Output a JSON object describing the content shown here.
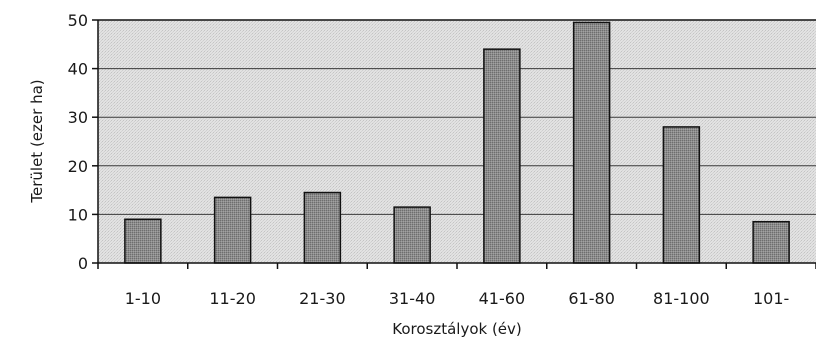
{
  "chart_data": {
    "type": "bar",
    "categories": [
      "1-10",
      "11-20",
      "21-30",
      "31-40",
      "41-60",
      "61-80",
      "81-100",
      "101-"
    ],
    "values": [
      9,
      13.5,
      14.5,
      11.5,
      44,
      49.5,
      28,
      8.5
    ],
    "title": "",
    "xlabel": "Korosztályok (év)",
    "ylabel": "Terület (ezer ha)",
    "ylim": [
      0,
      50
    ],
    "yticks": [
      0,
      10,
      20,
      30,
      40,
      50
    ],
    "grid": true,
    "legend": "none",
    "colors": {
      "bar_fill": "#8c8c8c",
      "bar_stroke": "#111111",
      "plot_background": "#e4e4e4",
      "grid": "#3a3a3a"
    }
  }
}
